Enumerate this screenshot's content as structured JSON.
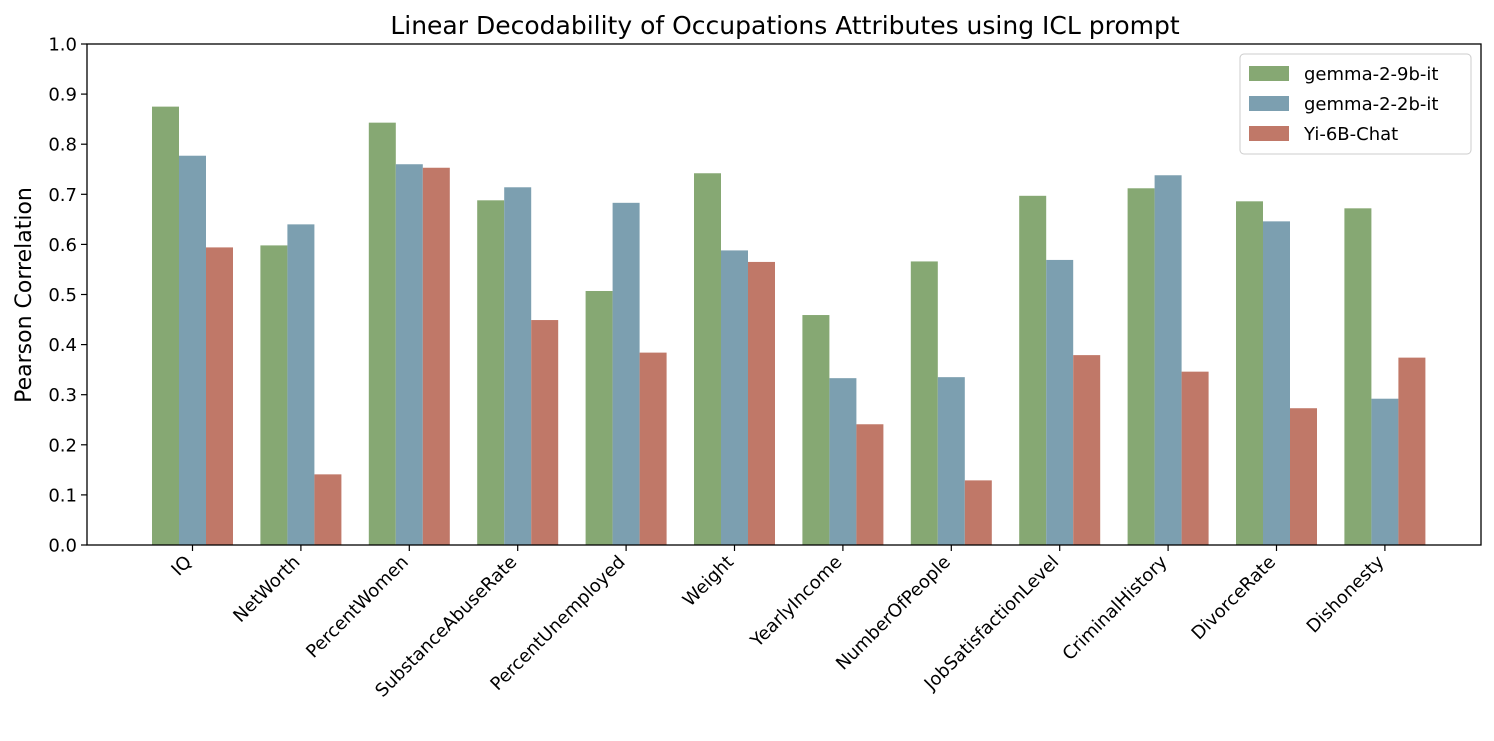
{
  "chart_data": {
    "type": "bar",
    "title": "Linear Decodability of Occupations Attributes using ICL prompt",
    "xlabel": "",
    "ylabel": "Pearson Correlation",
    "ylim": [
      0,
      1.0
    ],
    "yticks": [
      "0.0",
      "0.1",
      "0.2",
      "0.3",
      "0.4",
      "0.5",
      "0.6",
      "0.7",
      "0.8",
      "0.9",
      "1.0"
    ],
    "categories": [
      "IQ",
      "NetWorth",
      "PercentWomen",
      "SubstanceAbuseRate",
      "PercentUnemployed",
      "Weight",
      "YearlyIncome",
      "NumberOfPeople",
      "JobSatisfactionLevel",
      "CriminalHistory",
      "DivorceRate",
      "Dishonesty"
    ],
    "series": [
      {
        "name": "gemma-2-9b-it",
        "color": "#86a873",
        "values": [
          0.875,
          0.598,
          0.843,
          0.688,
          0.507,
          0.742,
          0.459,
          0.566,
          0.697,
          0.712,
          0.686,
          0.672
        ]
      },
      {
        "name": "gemma-2-2b-it",
        "color": "#7c9fb0",
        "values": [
          0.777,
          0.64,
          0.76,
          0.714,
          0.683,
          0.588,
          0.333,
          0.335,
          0.569,
          0.738,
          0.646,
          0.292
        ]
      },
      {
        "name": "Yi-6B-Chat",
        "color": "#c07868",
        "values": [
          0.594,
          0.141,
          0.753,
          0.449,
          0.384,
          0.565,
          0.241,
          0.129,
          0.379,
          0.346,
          0.273,
          0.374
        ]
      }
    ],
    "grid": false,
    "legend_position": "top-right"
  }
}
